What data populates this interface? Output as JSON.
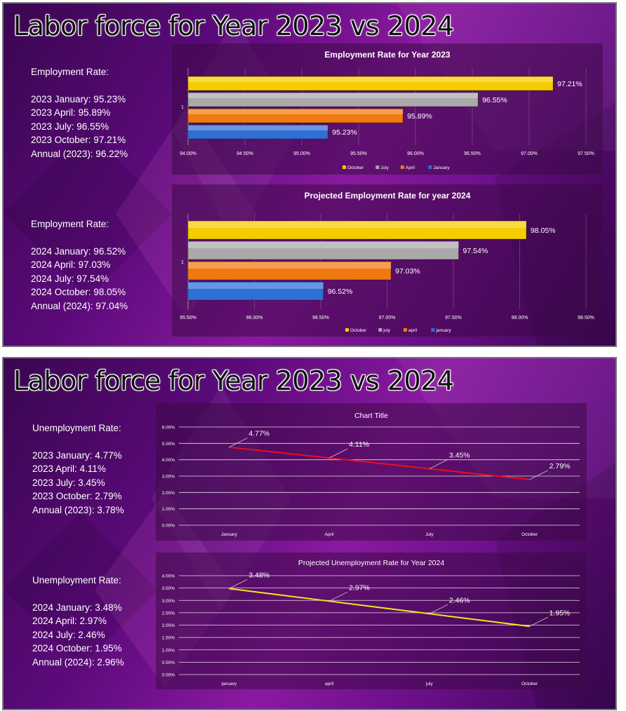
{
  "slides": [
    {
      "title": "Labor force for Year 2023 vs 2024",
      "blocks": [
        {
          "heading": "Employment Rate:",
          "lines": [
            "2023 January: 95.23%",
            "2023 April: 95.89%",
            "2023 July: 96.55%",
            "2023 October: 97.21%",
            "Annual (2023): 96.22%"
          ]
        },
        {
          "heading": "Employment Rate:",
          "lines": [
            "2024 January: 96.52%",
            "2024 April: 97.03%",
            "2024 July: 97.54%",
            "2024 October: 98.05%",
            "Annual (2024): 97.04%"
          ]
        }
      ]
    },
    {
      "title": "Labor force for Year 2023 vs 2024",
      "blocks": [
        {
          "heading": "Unemployment Rate:",
          "lines": [
            "2023 January: 4.77%",
            "2023 April: 4.11%",
            "2023 July: 3.45%",
            "2023 October: 2.79%",
            "Annual (2023): 3.78%"
          ]
        },
        {
          "heading": "Unemployment Rate:",
          "lines": [
            "2024 January: 3.48%",
            "2024 April: 2.97%",
            "2024 July: 2.46%",
            "2024 October: 1.95%",
            "Annual (2024): 2.96%"
          ]
        }
      ]
    }
  ],
  "chart_data": [
    {
      "type": "bar",
      "orientation": "horizontal",
      "title": "Employment Rate for Year 2023",
      "category": "1",
      "series": [
        {
          "name": "January",
          "value": 95.23,
          "label": "95.23%",
          "color": "#2f6fd6"
        },
        {
          "name": "April",
          "value": 95.89,
          "label": "95.89%",
          "color": "#f07a10"
        },
        {
          "name": "July",
          "value": 96.55,
          "label": "96.55%",
          "color": "#a9a9a9"
        },
        {
          "name": "October",
          "value": 97.21,
          "label": "97.21%",
          "color": "#f5cc00"
        }
      ],
      "legend_order": [
        "October",
        "July",
        "April",
        "January"
      ],
      "xlim": [
        94.0,
        97.5
      ],
      "xticks": [
        "94.00%",
        "94.50%",
        "95.00%",
        "95.50%",
        "96.00%",
        "96.50%",
        "97.00%",
        "97.50%"
      ],
      "legend": "bottom",
      "grid": true
    },
    {
      "type": "bar",
      "orientation": "horizontal",
      "title": "Projected Employment Rate for year 2024",
      "category": "1",
      "series": [
        {
          "name": "january",
          "value": 96.52,
          "label": "96.52%",
          "color": "#2f6fd6"
        },
        {
          "name": "april",
          "value": 97.03,
          "label": "97.03%",
          "color": "#f07a10"
        },
        {
          "name": "july",
          "value": 97.54,
          "label": "97.54%",
          "color": "#a9a9a9"
        },
        {
          "name": "October",
          "value": 98.05,
          "label": "98.05%",
          "color": "#f5cc00"
        }
      ],
      "legend_order": [
        "October",
        "july",
        "april",
        "january"
      ],
      "xlim": [
        95.5,
        98.5
      ],
      "xticks": [
        "95.50%",
        "96.00%",
        "96.50%",
        "97.00%",
        "97.50%",
        "98.00%",
        "98.50%"
      ],
      "legend": "bottom",
      "grid": true
    },
    {
      "type": "line",
      "title": "Chart Title",
      "categories": [
        "January",
        "April",
        "July",
        "October"
      ],
      "values": [
        4.77,
        4.11,
        3.45,
        2.79
      ],
      "labels": [
        "4.77%",
        "4.11%",
        "3.45%",
        "2.79%"
      ],
      "color": "#e8101a",
      "ylim": [
        0,
        6
      ],
      "yticks": [
        "0.00%",
        "1.00%",
        "2.00%",
        "3.00%",
        "4.00%",
        "5.00%",
        "6.00%"
      ],
      "grid": true
    },
    {
      "type": "line",
      "title": "Projected Unemployment Rate for Year 2024",
      "categories": [
        "january",
        "april",
        "july",
        "October"
      ],
      "values": [
        3.48,
        2.97,
        2.46,
        1.95
      ],
      "labels": [
        "3.48%",
        "2.97%",
        "2.46%",
        "1.95%"
      ],
      "color": "#f5e61a",
      "ylim": [
        0,
        4
      ],
      "yticks": [
        "0.00%",
        "0.50%",
        "1.00%",
        "1.50%",
        "2.00%",
        "2.50%",
        "3.00%",
        "3.50%",
        "4.00%"
      ],
      "grid": true
    }
  ]
}
